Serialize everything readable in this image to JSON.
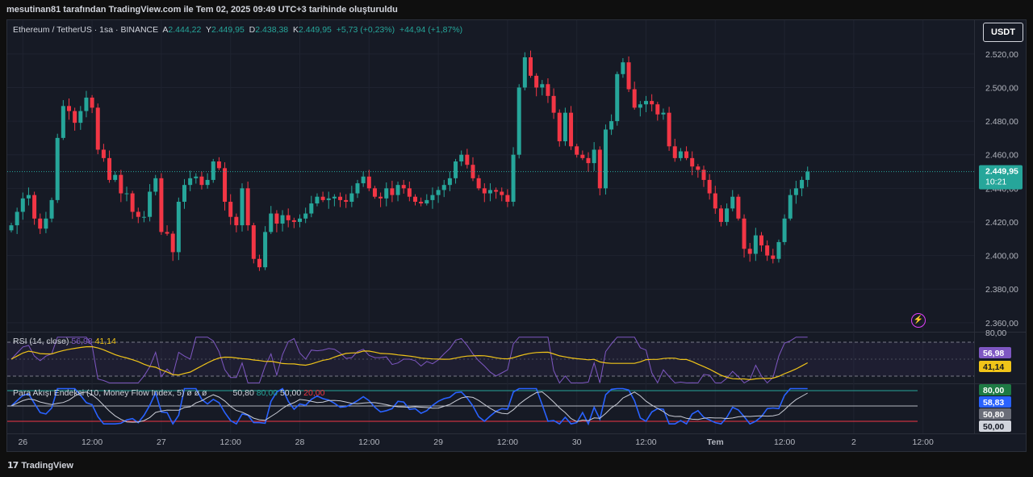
{
  "header": {
    "attribution": "mesutinan81 tarafından TradingView.com ile Tem 02, 2025 09:49 UTC+3 tarihinde oluşturuldu"
  },
  "legend": {
    "symbol": "Ethereum / TetherUS · 1sa · BINANCE",
    "open_label": "A",
    "open": "2.444,22",
    "high_label": "Y",
    "high": "2.449,95",
    "low_label": "D",
    "low": "2.438,38",
    "close_label": "K",
    "close": "2.449,95",
    "change": "+5,73 (+0,23%)",
    "change2": "+44,94 (+1,87%)"
  },
  "currency_button": "USDT",
  "colors": {
    "up": "#26a69a",
    "down": "#f23645",
    "rsi": "#7e57c2",
    "rsi_ma": "#f0c419",
    "mfi": "#2962ff",
    "mfi_ma": "#c9ccd6"
  },
  "chart_data": [
    {
      "type": "candlestick",
      "title": "Ethereum / TetherUS · 1sa · BINANCE",
      "ylim": [
        2358,
        2530
      ],
      "y_ticks": [
        "2.360,00",
        "2.380,00",
        "2.400,00",
        "2.420,00",
        "2.440,00",
        "2.460,00",
        "2.480,00",
        "2.500,00",
        "2.520,00"
      ],
      "y_tick_values": [
        2360,
        2380,
        2400,
        2420,
        2440,
        2460,
        2480,
        2500,
        2520
      ],
      "x_ticks": [
        "26",
        "12:00",
        "27",
        "12:00",
        "28",
        "12:00",
        "29",
        "12:00",
        "30",
        "12:00",
        "Tem",
        "12:00",
        "2",
        "12:00"
      ],
      "x_tick_hours": [
        0,
        12,
        24,
        36,
        48,
        60,
        72,
        84,
        96,
        108,
        120,
        132,
        144,
        156
      ],
      "start_hour": -2,
      "closes": [
        2418,
        2426,
        2434,
        2436,
        2422,
        2416,
        2422,
        2433,
        2470,
        2489,
        2486,
        2479,
        2486,
        2494,
        2488,
        2463,
        2458,
        2445,
        2448,
        2437,
        2437,
        2426,
        2423,
        2423,
        2438,
        2446,
        2414,
        2413,
        2402,
        2432,
        2442,
        2446,
        2447,
        2442,
        2445,
        2456,
        2452,
        2432,
        2423,
        2418,
        2440,
        2418,
        2398,
        2393,
        2414,
        2425,
        2419,
        2424,
        2421,
        2420,
        2422,
        2425,
        2431,
        2435,
        2433,
        2434,
        2435,
        2433,
        2432,
        2437,
        2443,
        2447,
        2440,
        2435,
        2434,
        2440,
        2436,
        2442,
        2440,
        2435,
        2432,
        2431,
        2433,
        2436,
        2439,
        2442,
        2446,
        2456,
        2460,
        2454,
        2446,
        2440,
        2437,
        2439,
        2438,
        2436,
        2432,
        2460,
        2500,
        2518,
        2507,
        2500,
        2502,
        2495,
        2485,
        2468,
        2485,
        2465,
        2460,
        2458,
        2455,
        2463,
        2440,
        2475,
        2480,
        2508,
        2515,
        2499,
        2488,
        2490,
        2492,
        2490,
        2484,
        2485,
        2465,
        2458,
        2462,
        2458,
        2453,
        2451,
        2445,
        2437,
        2428,
        2420,
        2428,
        2435,
        2422,
        2404,
        2401,
        2412,
        2406,
        2400,
        2398,
        2408,
        2422,
        2436,
        2440,
        2445,
        2449.95
      ],
      "rsi": {
        "name": "RSI (14, close)",
        "value": "56,98",
        "ma_value": "41,14",
        "upper": "80,00"
      },
      "mfi": {
        "name": "Para Akışı Endeksi (10, Money Flow Index, 5)",
        "flags": "ø ø ø",
        "ma_value": "50,80",
        "upper": "80,00",
        "mid": "50,00",
        "lower": "20,00",
        "value": "58,83"
      }
    }
  ],
  "price_tag": {
    "price": "2.449,95",
    "countdown": "10:21"
  },
  "rsi_axis": {
    "top": "80,00",
    "value": "56,98",
    "ma": "41,14"
  },
  "mfi_axis": {
    "upper": "80,00",
    "value": "58,83",
    "ma": "50,80",
    "mid": "50,00"
  },
  "footer": {
    "brand_mark": "17",
    "brand": "TradingView"
  }
}
